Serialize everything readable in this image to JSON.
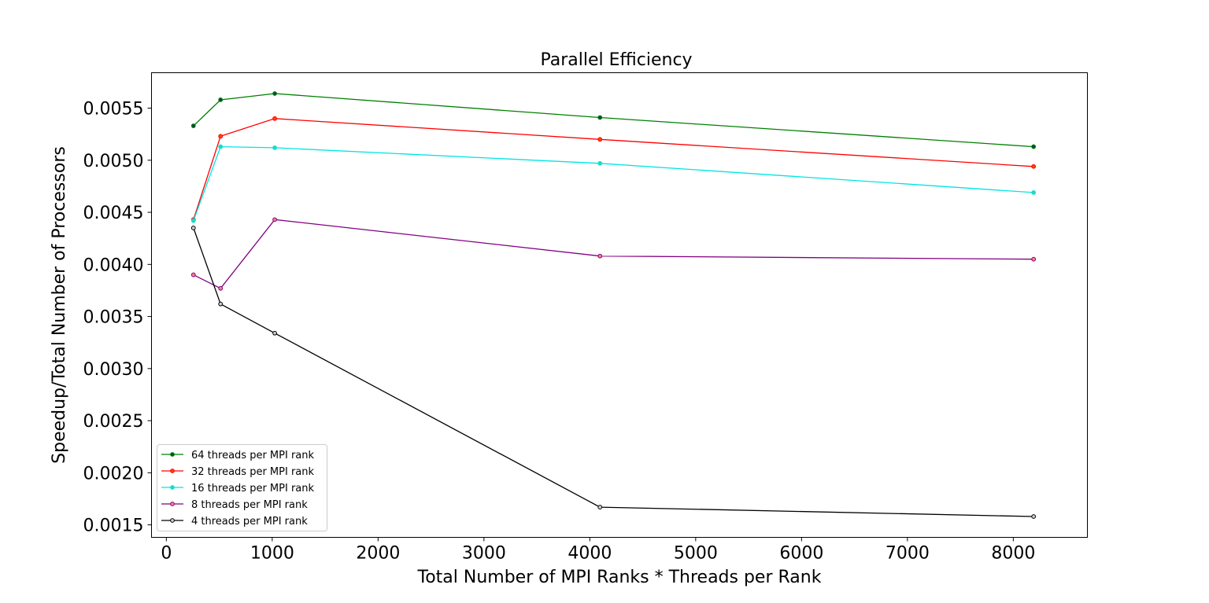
{
  "chart_data": {
    "type": "line",
    "title": "Parallel Efficiency",
    "xlabel": "Total Number of MPI Ranks * Threads per Rank",
    "ylabel": "Speedup/Total Number of Processors",
    "xlim": [
      -140,
      8700
    ],
    "ylim": [
      0.00138,
      0.00584
    ],
    "xticks": [
      0,
      1000,
      2000,
      3000,
      4000,
      5000,
      6000,
      7000,
      8000
    ],
    "xtick_labels": [
      "0",
      "1000",
      "2000",
      "3000",
      "4000",
      "5000",
      "6000",
      "7000",
      "8000"
    ],
    "yticks": [
      0.0015,
      0.002,
      0.0025,
      0.003,
      0.0035,
      0.004,
      0.0045,
      0.005,
      0.0055
    ],
    "ytick_labels": [
      "0.0015",
      "0.0020",
      "0.0025",
      "0.0030",
      "0.0035",
      "0.0040",
      "0.0045",
      "0.0050",
      "0.0055"
    ],
    "grid": false,
    "legend_position": "lower-left",
    "x": [
      256,
      512,
      1024,
      4096,
      8192
    ],
    "series": [
      {
        "name": "64 threads per MPI rank",
        "color": "#008000",
        "marker_fill": "#004d40",
        "values": [
          0.00533,
          0.00558,
          0.00564,
          0.00541,
          0.00513
        ]
      },
      {
        "name": "32 threads per MPI rank",
        "color": "#ff0000",
        "marker_fill": "#ff4500",
        "values": [
          0.00443,
          0.00523,
          0.0054,
          0.0052,
          0.00494
        ]
      },
      {
        "name": "16 threads per MPI rank",
        "color": "#00e5e5",
        "marker_fill": "#2bd6b4",
        "values": [
          0.00442,
          0.00513,
          0.00512,
          0.00497,
          0.00469
        ]
      },
      {
        "name": "8 threads per MPI rank",
        "color": "#800080",
        "marker_fill": "#ff7f7f",
        "values": [
          0.0039,
          0.00377,
          0.00443,
          0.00408,
          0.00405
        ]
      },
      {
        "name": "4 threads per MPI rank",
        "color": "#000000",
        "marker_fill": "#cccccc",
        "values": [
          0.00435,
          0.00362,
          0.00334,
          0.00167,
          0.00158
        ]
      }
    ]
  }
}
